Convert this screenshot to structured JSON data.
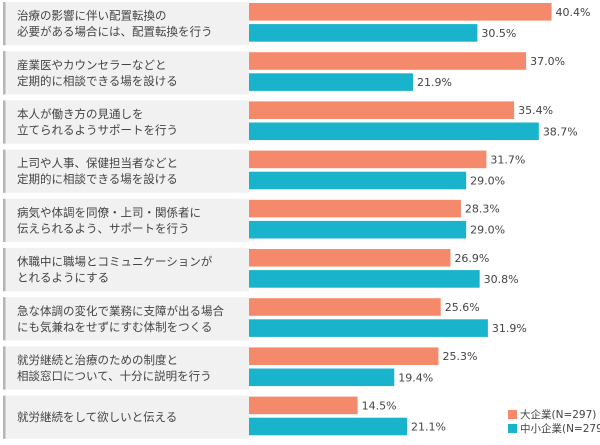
{
  "chart_data": {
    "type": "bar",
    "orientation": "horizontal",
    "categories": [
      [
        "治療の影響に伴い配置転換の",
        "必要がある場合には、配置転換を行う"
      ],
      [
        "産業医やカウンセラーなどと",
        "定期的に相談できる場を設ける"
      ],
      [
        "本人が働き方の見通しを",
        "立てられるようサポートを行う"
      ],
      [
        "上司や人事、保健担当者などと",
        "定期的に相談できる場を設ける"
      ],
      [
        "病気や体調を同僚・上司・関係者に",
        "伝えられるよう、サポートを行う"
      ],
      [
        "休職中に職場とコミュニケーションが",
        "とれるようにする"
      ],
      [
        "急な体調の変化で業務に支障が出る場合",
        "にも気兼ねをせずにすむ体制をつくる"
      ],
      [
        "就労継続と治療のための制度と",
        "相談窓口について、十分に説明を行う"
      ],
      [
        "就労継続をして欲しいと伝える"
      ]
    ],
    "series": [
      {
        "name": "大企業(N=297)",
        "color": "#f4896b",
        "values": [
          40.4,
          37.0,
          35.4,
          31.7,
          28.3,
          26.9,
          25.6,
          25.3,
          14.5
        ],
        "labels": [
          "40.4%",
          "37.0%",
          "35.4%",
          "31.7%",
          "28.3%",
          "26.9%",
          "25.6%",
          "25.3%",
          "14.5%"
        ]
      },
      {
        "name": "中小企業(N=279)",
        "color": "#1ab3cc",
        "values": [
          30.5,
          21.9,
          38.7,
          29.0,
          29.0,
          30.8,
          31.9,
          19.4,
          21.1
        ],
        "labels": [
          "30.5%",
          "21.9%",
          "38.7%",
          "29.0%",
          "29.0%",
          "30.8%",
          "31.9%",
          "19.4%",
          "21.1%"
        ]
      }
    ],
    "xlim": [
      0,
      45
    ],
    "title": "",
    "xlabel": "",
    "ylabel": "",
    "grid": false,
    "legend_position": "bottom-right",
    "label_box_color": "#f1f1f1",
    "label_accent_color": "#b5b5b5"
  }
}
